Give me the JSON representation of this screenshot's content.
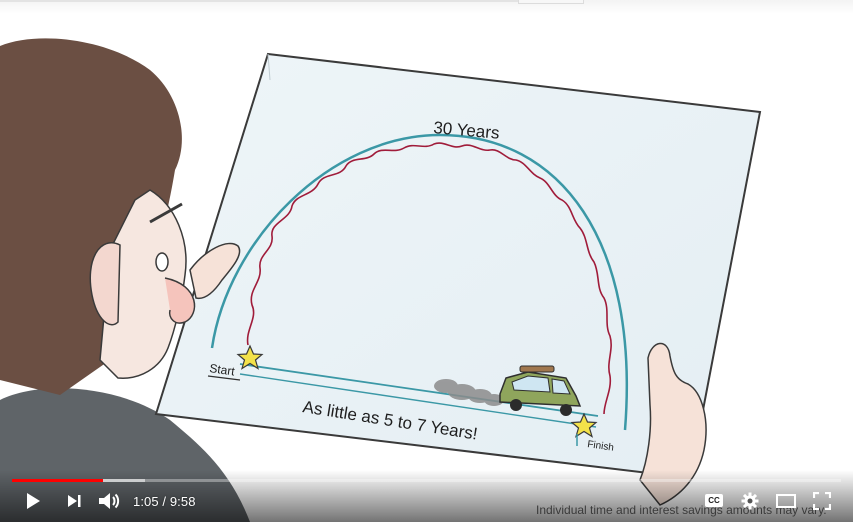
{
  "video": {
    "arc_label": "30 Years",
    "start_label": "Start",
    "finish_label": "Finish",
    "bottom_caption": "As little as 5 to 7 Years!",
    "disclaimer": "Individual time and interest savings amounts may vary.",
    "played_fraction": 0.11,
    "buffered_fraction": 0.16
  },
  "player": {
    "time_display": "1:05 / 9:58",
    "play_icon": "play-icon",
    "next_icon": "next-icon",
    "volume_icon": "volume-icon",
    "cc_label": "CC",
    "settings_icon": "gear-icon",
    "theater_icon": "theater-mode-icon",
    "fullscreen_icon": "fullscreen-icon",
    "accent_color": "#ff0000"
  }
}
